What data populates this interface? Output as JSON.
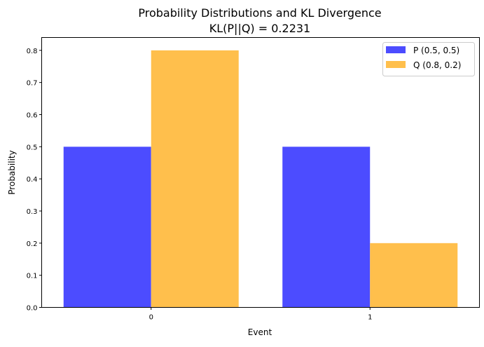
{
  "chart_data": {
    "type": "bar",
    "title": "Probability Distributions and KL Divergence",
    "subtitle": "KL(P||Q) = 0.2231",
    "xlabel": "Event",
    "ylabel": "Probability",
    "categories": [
      "0",
      "1"
    ],
    "series": [
      {
        "name": "P (0.5, 0.5)",
        "values": [
          0.5,
          0.5
        ],
        "color": "#4c4cff"
      },
      {
        "name": "Q (0.8, 0.2)",
        "values": [
          0.8,
          0.2
        ],
        "color": "#ffbf4c"
      }
    ],
    "xlim": [
      -0.5,
      1.5
    ],
    "ylim": [
      0,
      0.84
    ],
    "yticks": [
      "0.0",
      "0.1",
      "0.2",
      "0.3",
      "0.4",
      "0.5",
      "0.6",
      "0.7",
      "0.8"
    ],
    "grid": false,
    "legend_position": "top-right"
  }
}
